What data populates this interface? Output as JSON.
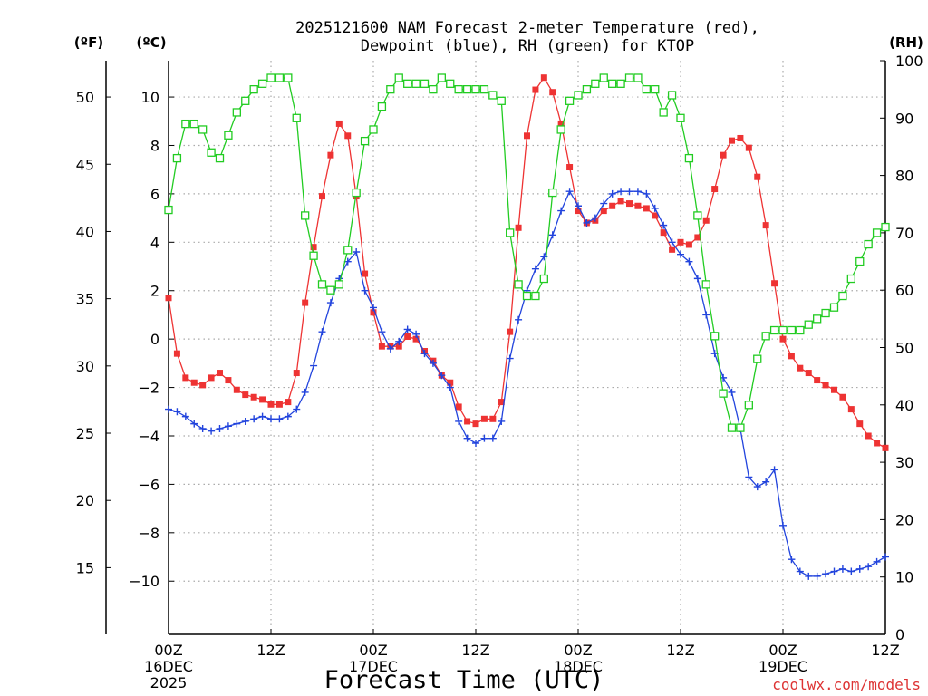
{
  "chart_data": {
    "type": "line",
    "title": "2025121600 NAM Forecast 2-meter Temperature (red),",
    "subtitle": "Dewpoint (blue), RH (green) for KTOP",
    "xlabel": "Forecast Time (UTC)",
    "credit": "coolwx.com/models",
    "units": {
      "fahrenheit": "(ºF)",
      "celsius": "(ºC)",
      "rh": "(RH)"
    },
    "x_ticks": [
      {
        "hour": 0,
        "lines": [
          "00Z",
          "16DEC",
          "2025"
        ]
      },
      {
        "hour": 12,
        "lines": [
          "12Z"
        ]
      },
      {
        "hour": 24,
        "lines": [
          "00Z",
          "17DEC"
        ]
      },
      {
        "hour": 36,
        "lines": [
          "12Z"
        ]
      },
      {
        "hour": 48,
        "lines": [
          "00Z",
          "18DEC"
        ]
      },
      {
        "hour": 60,
        "lines": [
          "12Z"
        ]
      },
      {
        "hour": 72,
        "lines": [
          "00Z",
          "19DEC"
        ]
      },
      {
        "hour": 84,
        "lines": [
          "12Z"
        ]
      }
    ],
    "xlim": [
      0,
      84
    ],
    "celsius_ticks": [
      "10",
      "8",
      "6",
      "4",
      "2",
      "0",
      "−2",
      "−4",
      "−6",
      "−8",
      "−10"
    ],
    "fahrenheit_ticks": [
      "50",
      "45",
      "40",
      "35",
      "30",
      "25",
      "20",
      "15"
    ],
    "rh_ticks": [
      "100",
      "90",
      "80",
      "70",
      "60",
      "50",
      "40",
      "30",
      "20",
      "10",
      "0"
    ],
    "ylim_celsius": [
      -12.2,
      11.5
    ],
    "ylim_rh": [
      0,
      100
    ],
    "grid": true,
    "colors": {
      "temperature": "#ee3333",
      "dewpoint": "#2244dd",
      "rh": "#22cc22"
    },
    "series": [
      {
        "name": "Temperature",
        "axis": "celsius",
        "marker": "square-filled",
        "x": [
          0,
          1,
          2,
          3,
          4,
          5,
          6,
          7,
          8,
          9,
          10,
          11,
          12,
          13,
          14,
          15,
          16,
          17,
          18,
          19,
          20,
          21,
          22,
          23,
          24,
          25,
          26,
          27,
          28,
          29,
          30,
          31,
          32,
          33,
          34,
          35,
          36,
          37,
          38,
          39,
          40,
          41,
          42,
          43,
          44,
          45,
          46,
          47,
          48,
          49,
          50,
          51,
          52,
          53,
          54,
          55,
          56,
          57,
          58,
          59,
          60,
          61,
          62,
          63,
          64,
          65,
          66,
          67,
          68,
          69,
          70,
          71,
          72,
          73,
          74,
          75,
          76,
          77,
          78,
          79,
          80,
          81,
          82,
          83,
          84
        ],
        "values": [
          1.7,
          -0.6,
          -1.6,
          -1.8,
          -1.9,
          -1.6,
          -1.4,
          -1.7,
          -2.1,
          -2.3,
          -2.4,
          -2.5,
          -2.7,
          -2.7,
          -2.6,
          -1.4,
          1.5,
          3.8,
          5.9,
          7.6,
          8.9,
          8.4,
          5.9,
          2.7,
          1.1,
          -0.3,
          -0.3,
          -0.3,
          0.1,
          0.0,
          -0.5,
          -0.9,
          -1.5,
          -1.8,
          -2.8,
          -3.4,
          -3.5,
          -3.3,
          -3.3,
          -2.6,
          0.3,
          4.6,
          8.4,
          10.3,
          10.8,
          10.2,
          8.9,
          7.1,
          5.3,
          4.8,
          4.9,
          5.3,
          5.5,
          5.7,
          5.6,
          5.5,
          5.4,
          5.1,
          4.4,
          3.7,
          4.0,
          3.9,
          4.2,
          4.9,
          6.2,
          7.6,
          8.2,
          8.3,
          7.9,
          6.7,
          4.7,
          2.3,
          0.0,
          -0.7,
          -1.2,
          -1.4,
          -1.7,
          -1.9,
          -2.1,
          -2.4,
          -2.9,
          -3.5,
          -4.0,
          -4.3,
          -4.5
        ]
      },
      {
        "name": "Dewpoint",
        "axis": "celsius",
        "marker": "plus",
        "x": [
          0,
          1,
          2,
          3,
          4,
          5,
          6,
          7,
          8,
          9,
          10,
          11,
          12,
          13,
          14,
          15,
          16,
          17,
          18,
          19,
          20,
          21,
          22,
          23,
          24,
          25,
          26,
          27,
          28,
          29,
          30,
          31,
          32,
          33,
          34,
          35,
          36,
          37,
          38,
          39,
          40,
          41,
          42,
          43,
          44,
          45,
          46,
          47,
          48,
          49,
          50,
          51,
          52,
          53,
          54,
          55,
          56,
          57,
          58,
          59,
          60,
          61,
          62,
          63,
          64,
          65,
          66,
          67,
          68,
          69,
          70,
          71,
          72,
          73,
          74,
          75,
          76,
          77,
          78,
          79,
          80,
          81,
          82,
          83,
          84
        ],
        "values": [
          -2.9,
          -3.0,
          -3.2,
          -3.5,
          -3.7,
          -3.8,
          -3.7,
          -3.6,
          -3.5,
          -3.4,
          -3.3,
          -3.2,
          -3.3,
          -3.3,
          -3.2,
          -2.9,
          -2.2,
          -1.1,
          0.3,
          1.5,
          2.5,
          3.2,
          3.6,
          2.0,
          1.3,
          0.3,
          -0.4,
          -0.1,
          0.4,
          0.2,
          -0.6,
          -1.0,
          -1.5,
          -2.0,
          -3.4,
          -4.1,
          -4.3,
          -4.1,
          -4.1,
          -3.4,
          -0.8,
          0.8,
          2.0,
          2.9,
          3.4,
          4.3,
          5.3,
          6.1,
          5.5,
          4.8,
          5.0,
          5.6,
          6.0,
          6.1,
          6.1,
          6.1,
          6.0,
          5.4,
          4.7,
          4.0,
          3.5,
          3.2,
          2.5,
          1.0,
          -0.6,
          -1.6,
          -2.2,
          -3.7,
          -5.7,
          -6.1,
          -5.9,
          -5.4,
          -7.7,
          -9.1,
          -9.6,
          -9.8,
          -9.8,
          -9.7,
          -9.6,
          -9.5,
          -9.6,
          -9.5,
          -9.4,
          -9.2,
          -9.0
        ]
      },
      {
        "name": "RH",
        "axis": "rh",
        "marker": "square-open",
        "x": [
          0,
          1,
          2,
          3,
          4,
          5,
          6,
          7,
          8,
          9,
          10,
          11,
          12,
          13,
          14,
          15,
          16,
          17,
          18,
          19,
          20,
          21,
          22,
          23,
          24,
          25,
          26,
          27,
          28,
          29,
          30,
          31,
          32,
          33,
          34,
          35,
          36,
          37,
          38,
          39,
          40,
          41,
          42,
          43,
          44,
          45,
          46,
          47,
          48,
          49,
          50,
          51,
          52,
          53,
          54,
          55,
          56,
          57,
          58,
          59,
          60,
          61,
          62,
          63,
          64,
          65,
          66,
          67,
          68,
          69,
          70,
          71,
          72,
          73,
          74,
          75,
          76,
          77,
          78,
          79,
          80,
          81,
          82,
          83,
          84
        ],
        "values": [
          74,
          83,
          89,
          89,
          88,
          84,
          83,
          87,
          91,
          93,
          95,
          96,
          97,
          97,
          97,
          90,
          73,
          66,
          61,
          60,
          61,
          67,
          77,
          86,
          88,
          92,
          95,
          97,
          96,
          96,
          96,
          95,
          97,
          96,
          95,
          95,
          95,
          95,
          94,
          93,
          70,
          61,
          59,
          59,
          62,
          77,
          88,
          93,
          94,
          95,
          96,
          97,
          96,
          96,
          97,
          97,
          95,
          95,
          91,
          94,
          90,
          83,
          73,
          61,
          52,
          42,
          36,
          36,
          40,
          48,
          52,
          53,
          53,
          53,
          53,
          54,
          55,
          56,
          57,
          59,
          62,
          65,
          68,
          70,
          71
        ]
      }
    ]
  }
}
